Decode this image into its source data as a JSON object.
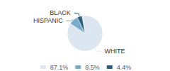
{
  "chart_data": {
    "type": "pie",
    "categories": [
      "WHITE",
      "HISPANIC",
      "BLACK"
    ],
    "values": [
      87.1,
      8.5,
      4.4
    ],
    "value_labels": [
      "87.1%",
      "8.5%",
      "4.4%"
    ],
    "colors": [
      "#dce6f0",
      "#7aadcc",
      "#2e5f7e"
    ],
    "legend": "bottom"
  }
}
